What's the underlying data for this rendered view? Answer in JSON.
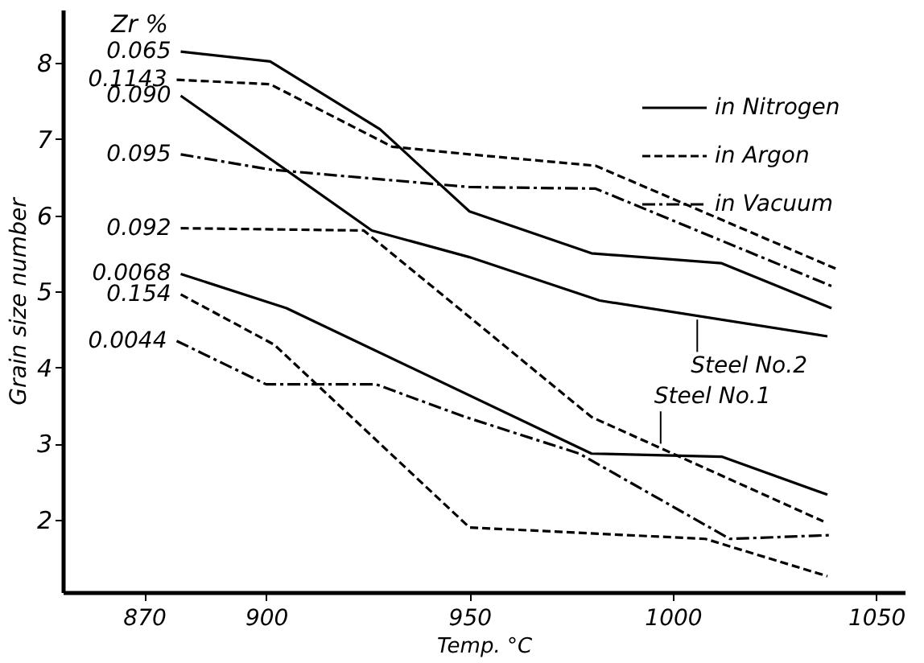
{
  "chart_data": {
    "type": "line",
    "xlabel": "Temp.   °C",
    "ylabel": "Grain size number",
    "xlim": [
      850,
      1057
    ],
    "ylim": [
      1.05,
      8.7
    ],
    "xticks": [
      870,
      900,
      950,
      {
        "value": 1000,
        "label": "1000"
      },
      {
        "value": 1050,
        "label": "1050"
      }
    ],
    "yticks": [
      2,
      3,
      4,
      5,
      6,
      7,
      8
    ],
    "legend": "top right",
    "series": [
      {
        "name": "in Nitrogen",
        "color": "#000000",
        "line_style": "solid",
        "x": [
          879,
          901,
          928,
          950,
          980,
          1012,
          1039
        ],
        "values": [
          8.15,
          8.02,
          7.13,
          6.05,
          5.5,
          5.37,
          4.78
        ]
      },
      {
        "color": "#000000",
        "line_style": "solid",
        "x": [
          879,
          926,
          950,
          982,
          1038
        ],
        "values": [
          7.57,
          5.8,
          5.45,
          4.88,
          4.41
        ]
      },
      {
        "color": "#000000",
        "line_style": "solid",
        "x": [
          879,
          905,
          980,
          1012,
          1038
        ],
        "values": [
          5.23,
          4.78,
          2.87,
          2.83,
          2.33
        ]
      },
      {
        "name": "in Argon",
        "color": "#000000",
        "line_style": "dashed",
        "x": [
          878,
          901,
          931,
          950,
          981,
          1040
        ],
        "values": [
          7.78,
          7.72,
          6.9,
          6.8,
          6.65,
          5.3
        ]
      },
      {
        "color": "#000000",
        "line_style": "dashed",
        "x": [
          879,
          924,
          980,
          1037
        ],
        "values": [
          5.83,
          5.8,
          3.35,
          1.98
        ]
      },
      {
        "color": "#000000",
        "line_style": "dashed",
        "x": [
          879,
          902,
          912,
          950,
          1008,
          1038
        ],
        "values": [
          4.96,
          4.3,
          3.8,
          1.9,
          1.75,
          1.26
        ]
      },
      {
        "name": "in Vacuum",
        "color": "#000000",
        "line_style": "dashdot",
        "x": [
          879,
          901,
          950,
          981,
          1039
        ],
        "values": [
          6.8,
          6.6,
          6.37,
          6.35,
          5.07
        ]
      },
      {
        "color": "#000000",
        "line_style": "dashdot",
        "x": [
          878,
          900,
          927,
          949,
          977,
          1014,
          1039
        ],
        "values": [
          4.35,
          3.78,
          3.78,
          3.35,
          2.87,
          1.75,
          1.8
        ]
      }
    ],
    "annotations": [
      "Zr %",
      {
        "text": "0.065",
        "x": 879,
        "y": 8.15
      },
      {
        "text": "0.1143",
        "x": 878,
        "y": 7.78
      },
      {
        "text": "0.090",
        "x": 879,
        "y": 7.57
      },
      {
        "text": "0.095",
        "x": 879,
        "y": 6.8
      },
      {
        "text": "0.092",
        "x": 879,
        "y": 5.83
      },
      {
        "text": "0.0068",
        "x": 879,
        "y": 5.23
      },
      {
        "text": "0.154",
        "x": 879,
        "y": 4.96
      },
      {
        "text": "0.0044",
        "x": 878,
        "y": 4.35
      },
      {
        "text": "Steel No.2",
        "x": 1006,
        "y": 4.63
      },
      {
        "text": "Steel No.1",
        "x": 997,
        "y": 3.0
      }
    ]
  }
}
